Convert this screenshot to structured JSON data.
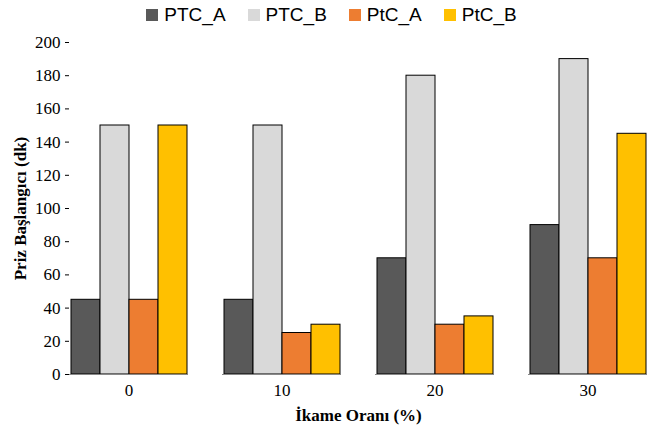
{
  "chart_data": {
    "type": "bar",
    "xlabel": "İkame Oranı (%)",
    "ylabel": "Priz Başlangıcı (dk)",
    "categories": [
      0,
      10,
      20,
      30
    ],
    "series": [
      {
        "name": "PTC_A",
        "color": "#595959",
        "values": [
          45,
          45,
          70,
          90
        ]
      },
      {
        "name": "PTC_B",
        "color": "#d9d9d9",
        "values": [
          150,
          150,
          180,
          190
        ]
      },
      {
        "name": "PtC_A",
        "color": "#ed7d31",
        "values": [
          45,
          25,
          30,
          70
        ]
      },
      {
        "name": "PtC_B",
        "color": "#ffc000",
        "values": [
          150,
          30,
          35,
          145
        ]
      }
    ],
    "ylim": [
      0,
      200
    ],
    "yticks": [
      0,
      20,
      40,
      60,
      80,
      100,
      120,
      140,
      160,
      180,
      200
    ],
    "grid": false,
    "legend": "top"
  }
}
